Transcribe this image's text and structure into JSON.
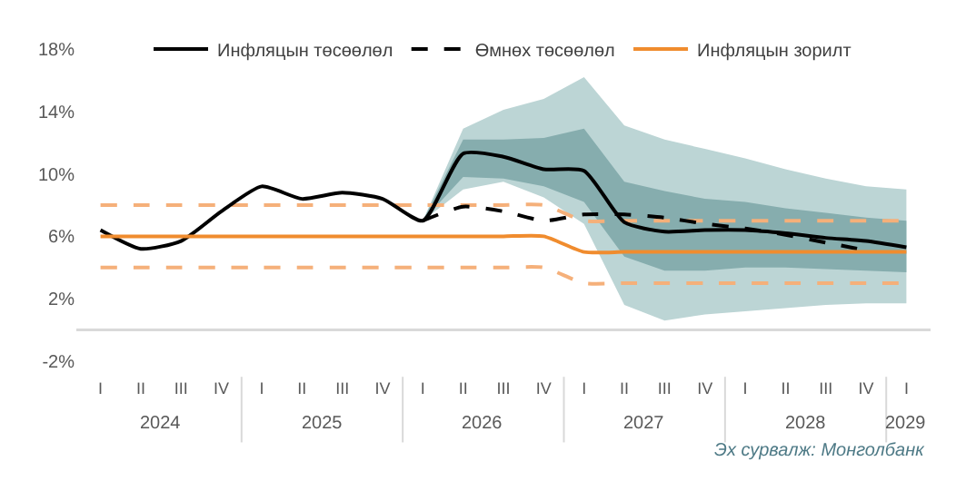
{
  "chart_data": {
    "type": "line",
    "categories": [
      "I",
      "II",
      "III",
      "IV",
      "I",
      "II",
      "III",
      "IV",
      "I",
      "II",
      "III",
      "IV",
      "I",
      "II",
      "III",
      "IV",
      "I",
      "II",
      "III",
      "IV",
      "I"
    ],
    "series": [
      {
        "color": "#bcd5d5",
        "values": [
          null,
          null,
          null,
          null,
          null,
          null,
          null,
          null,
          null,
          null,
          null,
          null,
          null,
          null,
          null,
          null,
          null,
          null,
          null,
          null,
          null
        ],
        "lower": [
          null,
          null,
          null,
          null,
          null,
          null,
          null,
          null,
          7.0,
          9.0,
          9.5,
          8.5,
          6.8,
          1.6,
          0.6,
          1.0,
          1.2,
          1.4,
          1.6,
          1.7,
          1.7
        ],
        "upper": [
          null,
          null,
          null,
          null,
          null,
          null,
          null,
          null,
          7.0,
          12.9,
          14.1,
          14.8,
          16.2,
          13.1,
          12.2,
          11.6,
          11.0,
          10.3,
          9.7,
          9.2,
          9.0
        ]
      },
      {
        "color": "#86adae",
        "values": [
          null,
          null,
          null,
          null,
          null,
          null,
          null,
          null,
          null,
          null,
          null,
          null,
          null,
          null,
          null,
          null,
          null,
          null,
          null,
          null,
          null
        ],
        "lower": [
          null,
          null,
          null,
          null,
          null,
          null,
          null,
          null,
          7.0,
          9.8,
          9.7,
          9.2,
          8.2,
          4.7,
          3.8,
          3.8,
          4.0,
          4.0,
          3.9,
          3.8,
          3.7
        ],
        "upper": [
          null,
          null,
          null,
          null,
          null,
          null,
          null,
          null,
          7.0,
          12.2,
          12.2,
          12.3,
          12.9,
          9.5,
          8.9,
          8.4,
          8.2,
          7.8,
          7.5,
          7.2,
          7.0
        ]
      },
      {
        "color": "#f5b07a",
        "line_style": "dashed",
        "values": [
          8,
          8,
          8,
          8,
          8,
          8,
          8,
          8,
          8,
          8,
          8,
          8,
          7,
          7,
          7,
          7,
          7,
          7,
          7,
          7,
          7
        ]
      },
      {
        "color": "#f5b07a",
        "line_style": "dashed",
        "values": [
          4,
          4,
          4,
          4,
          4,
          4,
          4,
          4,
          4,
          4,
          4,
          4,
          3,
          3,
          3,
          3,
          3,
          3,
          3,
          3,
          3
        ]
      },
      {
        "name": "Инфляцын төсөөлөл",
        "color": "#000000",
        "line_style": "solid",
        "values": [
          6.4,
          5.2,
          5.7,
          7.6,
          9.2,
          8.4,
          8.8,
          8.4,
          7.0,
          11.3,
          11.1,
          10.3,
          10.2,
          6.9,
          6.3,
          6.4,
          6.4,
          6.2,
          5.9,
          5.7,
          5.3
        ]
      },
      {
        "name": "Өмнөх төсөөлөл",
        "color": "#000000",
        "line_style": "dashed",
        "values": [
          null,
          null,
          null,
          null,
          null,
          null,
          null,
          null,
          7.0,
          7.9,
          7.6,
          7.0,
          7.4,
          7.4,
          7.2,
          6.8,
          6.5,
          6.1,
          5.6,
          5.1,
          null
        ]
      },
      {
        "name": "Инфляцын зорилт",
        "color": "#f08c2e",
        "line_style": "solid",
        "values": [
          6,
          6,
          6,
          6,
          6,
          6,
          6,
          6,
          6,
          6,
          6,
          6,
          5,
          5,
          5,
          5,
          5,
          5,
          5,
          5,
          5
        ]
      }
    ],
    "ylim": [
      -2,
      18
    ],
    "yticks": [
      {
        "value": -2,
        "label": "-2%"
      },
      {
        "value": 2,
        "label": "2%"
      },
      {
        "value": 6,
        "label": "6%"
      },
      {
        "value": 10,
        "label": "10%"
      },
      {
        "value": 14,
        "label": "14%"
      },
      {
        "value": 18,
        "label": "18%"
      }
    ],
    "ref_lines": [
      {
        "axis": "y",
        "value": 0,
        "color": "#d9d9d9"
      }
    ],
    "annotations": [
      "2024",
      "2025",
      "2026",
      "2027",
      "2028",
      "2029",
      "Эх сурвалж: Монголбанк"
    ],
    "legend": "top",
    "marker": "none"
  }
}
